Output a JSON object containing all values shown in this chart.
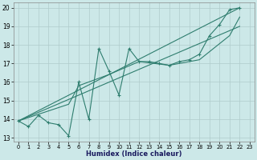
{
  "xlabel": "Humidex (Indice chaleur)",
  "bg_color": "#cce8e8",
  "grid_color": "#b0cccc",
  "line_color": "#2e7d6e",
  "xlim": [
    -0.5,
    23.5
  ],
  "ylim": [
    12.8,
    20.3
  ],
  "yticks": [
    13,
    14,
    15,
    16,
    17,
    18,
    19,
    20
  ],
  "xticks": [
    0,
    1,
    2,
    3,
    4,
    5,
    6,
    7,
    8,
    9,
    10,
    11,
    12,
    13,
    14,
    15,
    16,
    17,
    18,
    19,
    20,
    21,
    22,
    23
  ],
  "series": [
    {
      "x": [
        0,
        1,
        2,
        3,
        4,
        5,
        6,
        7,
        8,
        9,
        10,
        11,
        12,
        13,
        14,
        15,
        16,
        17,
        18,
        19,
        20,
        21,
        22
      ],
      "y": [
        13.9,
        13.6,
        14.2,
        13.8,
        13.7,
        13.1,
        16.0,
        14.0,
        17.8,
        16.6,
        15.3,
        17.8,
        17.1,
        17.1,
        17.0,
        16.9,
        17.1,
        17.2,
        17.5,
        18.5,
        19.1,
        19.9,
        20.0
      ],
      "marker": true,
      "lw": 0.8
    },
    {
      "x": [
        0,
        22
      ],
      "y": [
        13.9,
        20.0
      ],
      "marker": false,
      "lw": 0.8
    },
    {
      "x": [
        0,
        22
      ],
      "y": [
        13.9,
        19.0
      ],
      "marker": false,
      "lw": 0.8
    },
    {
      "x": [
        0,
        5,
        6,
        9,
        12,
        15,
        18,
        21,
        22
      ],
      "y": [
        13.9,
        14.8,
        15.8,
        16.4,
        17.1,
        16.9,
        17.2,
        18.5,
        19.5
      ],
      "marker": false,
      "lw": 0.8
    }
  ]
}
